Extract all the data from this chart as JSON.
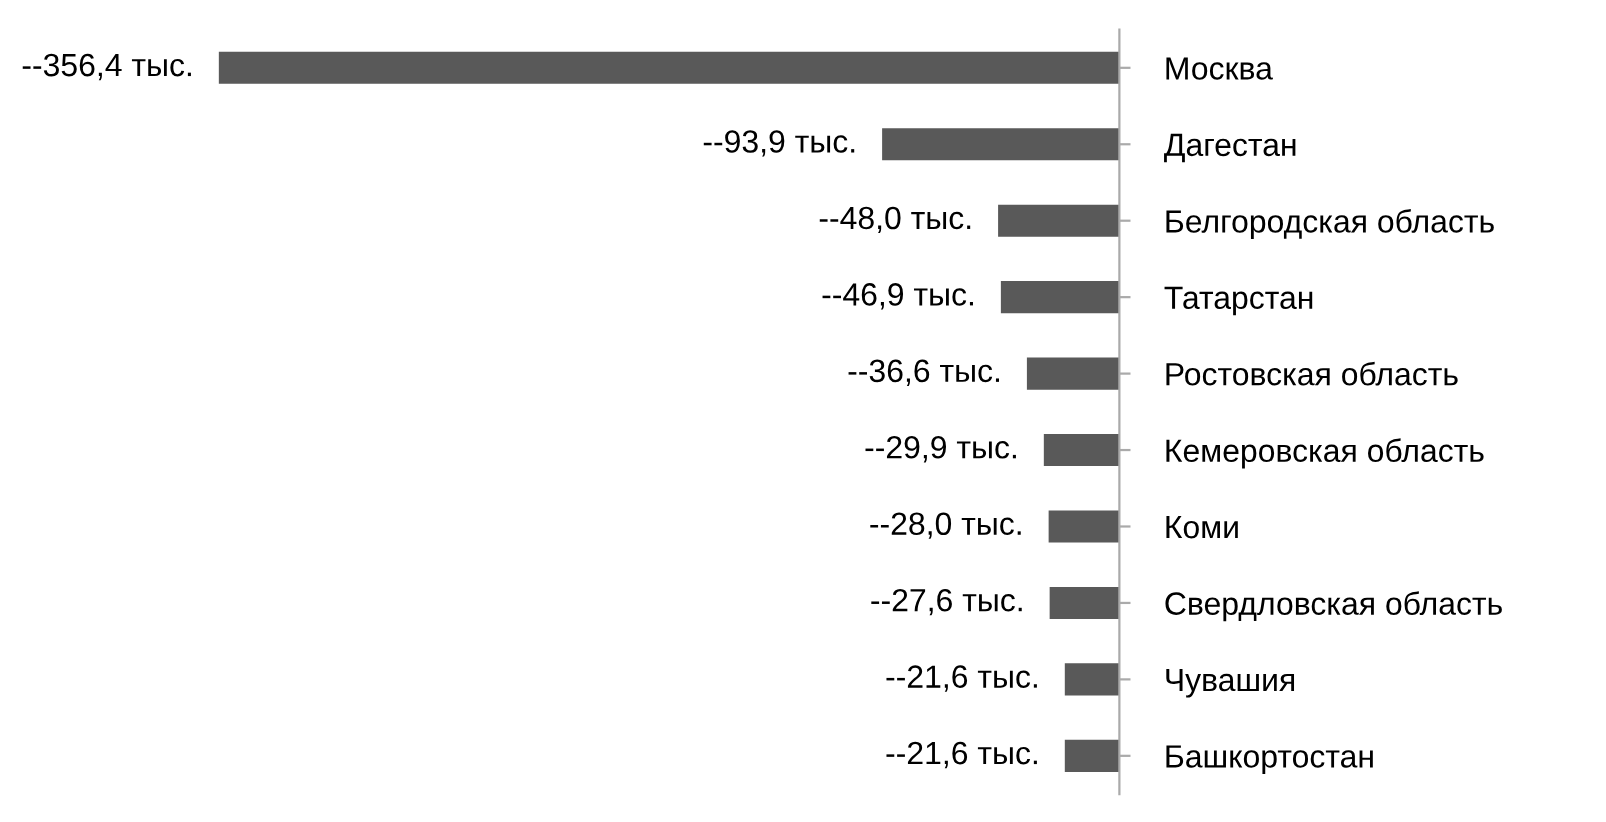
{
  "chart_data": {
    "type": "bar",
    "orientation": "horizontal",
    "categories": [
      "Москва",
      "Дагестан",
      "Белгородская область",
      "Татарстан",
      "Ростовская область",
      "Кемеровская область",
      "Коми",
      "Свердловская область",
      "Чувашия",
      "Башкортостан"
    ],
    "values": [
      -356.4,
      -93.9,
      -48.0,
      -46.9,
      -36.6,
      -29.9,
      -28.0,
      -27.6,
      -21.6,
      -21.6
    ],
    "value_labels": [
      "--356,4 тыс.",
      "--93,9 тыс.",
      "--48,0 тыс.",
      "--46,9 тыс.",
      "--36,6 тыс.",
      "--29,9 тыс.",
      "--28,0 тыс.",
      "--27,6 тыс.",
      "--21,6 тыс.",
      "--21,6 тыс."
    ],
    "color": "#595959",
    "tick_labels": "y"
  }
}
